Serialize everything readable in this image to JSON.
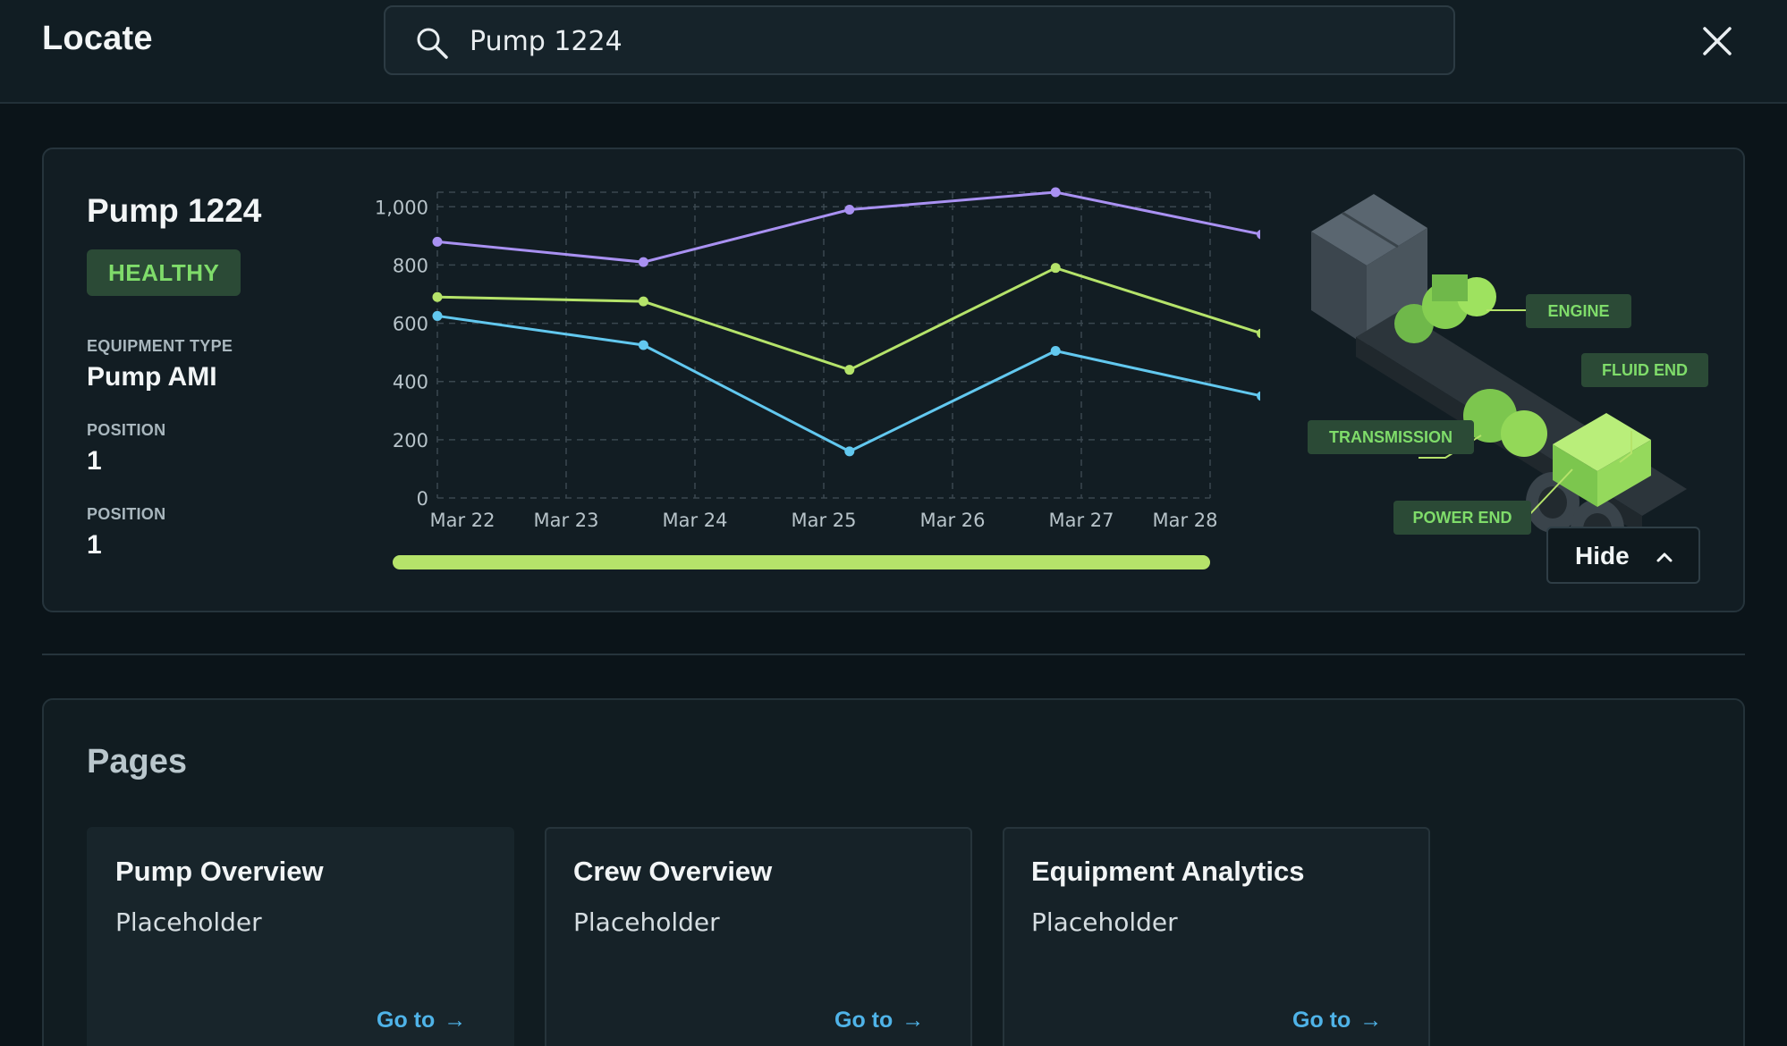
{
  "header": {
    "title": "Locate",
    "search_value": "Pump 1224",
    "search_icon": "search-icon",
    "close_icon": "close-icon"
  },
  "asset": {
    "name": "Pump 1224",
    "status": "HEALTHY",
    "status_color": "#7fdc6a",
    "fields": [
      {
        "label": "EQUIPMENT TYPE",
        "value": "Pump AMI"
      },
      {
        "label": "POSITION",
        "value": "1"
      },
      {
        "label": "POSITION",
        "value": "1"
      }
    ],
    "illustration_labels": {
      "engine": "ENGINE",
      "fluid_end": "FLUID END",
      "transmission": "TRANSMISSION",
      "power_end": "POWER END"
    },
    "hide_label": "Hide"
  },
  "chart_data": {
    "type": "line",
    "x": [
      "Mar 22",
      "Mar 23",
      "Mar 24",
      "Mar 25",
      "Mar 26",
      "Mar 27",
      "Mar 28"
    ],
    "ylim": [
      0,
      1050
    ],
    "yticks": [
      0,
      200,
      400,
      600,
      800,
      1000
    ],
    "ytick_labels": [
      "0",
      "200",
      "400",
      "600",
      "800",
      "1,000"
    ],
    "grid": true,
    "series": [
      {
        "color": "#a991f2",
        "points": [
          [
            0,
            880
          ],
          [
            1.6,
            810
          ],
          [
            3.2,
            990
          ],
          [
            4.8,
            1050
          ],
          [
            6.4,
            905
          ]
        ]
      },
      {
        "color": "#b5e36a",
        "points": [
          [
            0,
            690
          ],
          [
            1.6,
            675
          ],
          [
            3.2,
            440
          ],
          [
            4.8,
            790
          ],
          [
            6.4,
            565
          ]
        ]
      },
      {
        "color": "#62c8ef",
        "points": [
          [
            0,
            625
          ],
          [
            1.6,
            525
          ],
          [
            3.2,
            160
          ],
          [
            4.8,
            505
          ],
          [
            6.4,
            350
          ]
        ]
      }
    ],
    "scrollbar_color": "#b5e36a"
  },
  "pages": {
    "title": "Pages",
    "items": [
      {
        "title": "Pump Overview",
        "desc": "Placeholder",
        "link": "Go to"
      },
      {
        "title": "Crew Overview",
        "desc": "Placeholder",
        "link": "Go to"
      },
      {
        "title": "Equipment Analytics",
        "desc": "Placeholder",
        "link": "Go to"
      }
    ]
  },
  "colors": {
    "background": "#0b1419",
    "accent_green": "#b5e36a",
    "link_blue": "#4fb3e8"
  }
}
